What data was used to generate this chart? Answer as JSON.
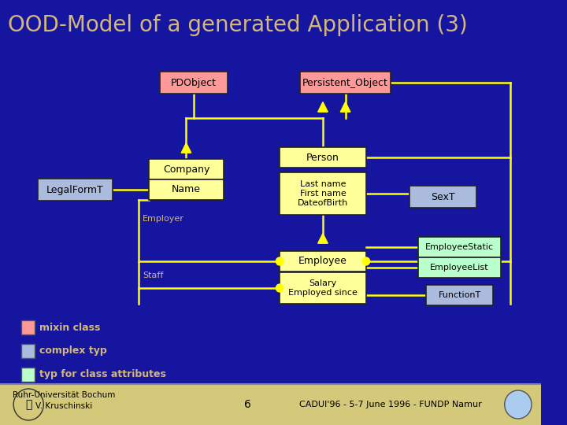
{
  "title": "OOD-Model of a generated Application (3)",
  "bg_color": "#1515a0",
  "title_color": "#d4b87a",
  "title_fontsize": 20,
  "box_yellow": "#ffff99",
  "box_pink": "#ff9999",
  "box_blue": "#aabbdd",
  "box_green": "#bbffcc",
  "line_color": "#ffff00",
  "line_width": 1.8,
  "footer_bg": "#d4c87a",
  "footer_sep_color": "#888888",
  "legend": [
    {
      "color": "#ff9999",
      "text": "mixin class"
    },
    {
      "color": "#aabbdd",
      "text": "complex typ"
    },
    {
      "color": "#bbffcc",
      "text": "typ for class attributes"
    }
  ],
  "footer_left": "Ruhr-Universität Bochum\nV. Kruschinski",
  "footer_center": "6",
  "footer_right": "CADUI'96 - 5-7 June 1996 - FUNDP Namur"
}
